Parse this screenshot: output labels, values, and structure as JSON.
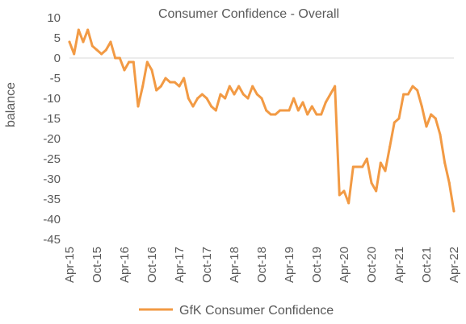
{
  "chart_data": {
    "type": "line",
    "title": "Consumer Confidence - Overall",
    "xlabel": "",
    "ylabel": "balance",
    "ylim": [
      -45,
      10
    ],
    "y_ticks": [
      10,
      5,
      0,
      -5,
      -10,
      -15,
      -20,
      -25,
      -30,
      -35,
      -40,
      -45
    ],
    "x_ticks": [
      "Apr-15",
      "Oct-15",
      "Apr-16",
      "Oct-16",
      "Apr-17",
      "Oct-17",
      "Apr-18",
      "Oct-18",
      "Apr-19",
      "Oct-19",
      "Apr-20",
      "Oct-20",
      "Apr-21",
      "Oct-21",
      "Apr-22"
    ],
    "grid": false,
    "legend_position": "bottom",
    "colors": {
      "series": "#F29A44",
      "text": "#595959",
      "axis": "#D9D9D9"
    },
    "x": [
      "Apr-15",
      "May-15",
      "Jun-15",
      "Jul-15",
      "Aug-15",
      "Sep-15",
      "Oct-15",
      "Nov-15",
      "Dec-15",
      "Jan-16",
      "Feb-16",
      "Mar-16",
      "Apr-16",
      "May-16",
      "Jun-16",
      "Jul-16",
      "Aug-16",
      "Sep-16",
      "Oct-16",
      "Nov-16",
      "Dec-16",
      "Jan-17",
      "Feb-17",
      "Mar-17",
      "Apr-17",
      "May-17",
      "Jun-17",
      "Jul-17",
      "Aug-17",
      "Sep-17",
      "Oct-17",
      "Nov-17",
      "Dec-17",
      "Jan-18",
      "Feb-18",
      "Mar-18",
      "Apr-18",
      "May-18",
      "Jun-18",
      "Jul-18",
      "Aug-18",
      "Sep-18",
      "Oct-18",
      "Nov-18",
      "Dec-18",
      "Jan-19",
      "Feb-19",
      "Mar-19",
      "Apr-19",
      "May-19",
      "Jun-19",
      "Jul-19",
      "Aug-19",
      "Sep-19",
      "Oct-19",
      "Nov-19",
      "Dec-19",
      "Jan-20",
      "Feb-20",
      "Mar-20",
      "Apr-20",
      "May-20",
      "Jun-20",
      "Jul-20",
      "Aug-20",
      "Sep-20",
      "Oct-20",
      "Nov-20",
      "Dec-20",
      "Jan-21",
      "Feb-21",
      "Mar-21",
      "Apr-21",
      "May-21",
      "Jun-21",
      "Jul-21",
      "Aug-21",
      "Sep-21",
      "Oct-21",
      "Nov-21",
      "Dec-21",
      "Jan-22",
      "Feb-22",
      "Mar-22",
      "Apr-22"
    ],
    "series": [
      {
        "name": "GfK Consumer Confidence",
        "values": [
          4,
          1,
          7,
          4,
          7,
          3,
          2,
          1,
          2,
          4,
          0,
          0,
          -3,
          -1,
          -1,
          -12,
          -7,
          -1,
          -3,
          -8,
          -7,
          -5,
          -6,
          -6,
          -7,
          -5,
          -10,
          -12,
          -10,
          -9,
          -10,
          -12,
          -13,
          -9,
          -10,
          -7,
          -9,
          -7,
          -9,
          -10,
          -7,
          -9,
          -10,
          -13,
          -14,
          -14,
          -13,
          -13,
          -13,
          -10,
          -13,
          -11,
          -14,
          -12,
          -14,
          -14,
          -11,
          -9,
          -7,
          -34,
          -33,
          -36,
          -27,
          -27,
          -27,
          -25,
          -31,
          -33,
          -26,
          -28,
          -22,
          -16,
          -15,
          -9,
          -9,
          -7,
          -8,
          -12,
          -17,
          -14,
          -15,
          -19,
          -26,
          -31,
          -38
        ]
      }
    ]
  }
}
